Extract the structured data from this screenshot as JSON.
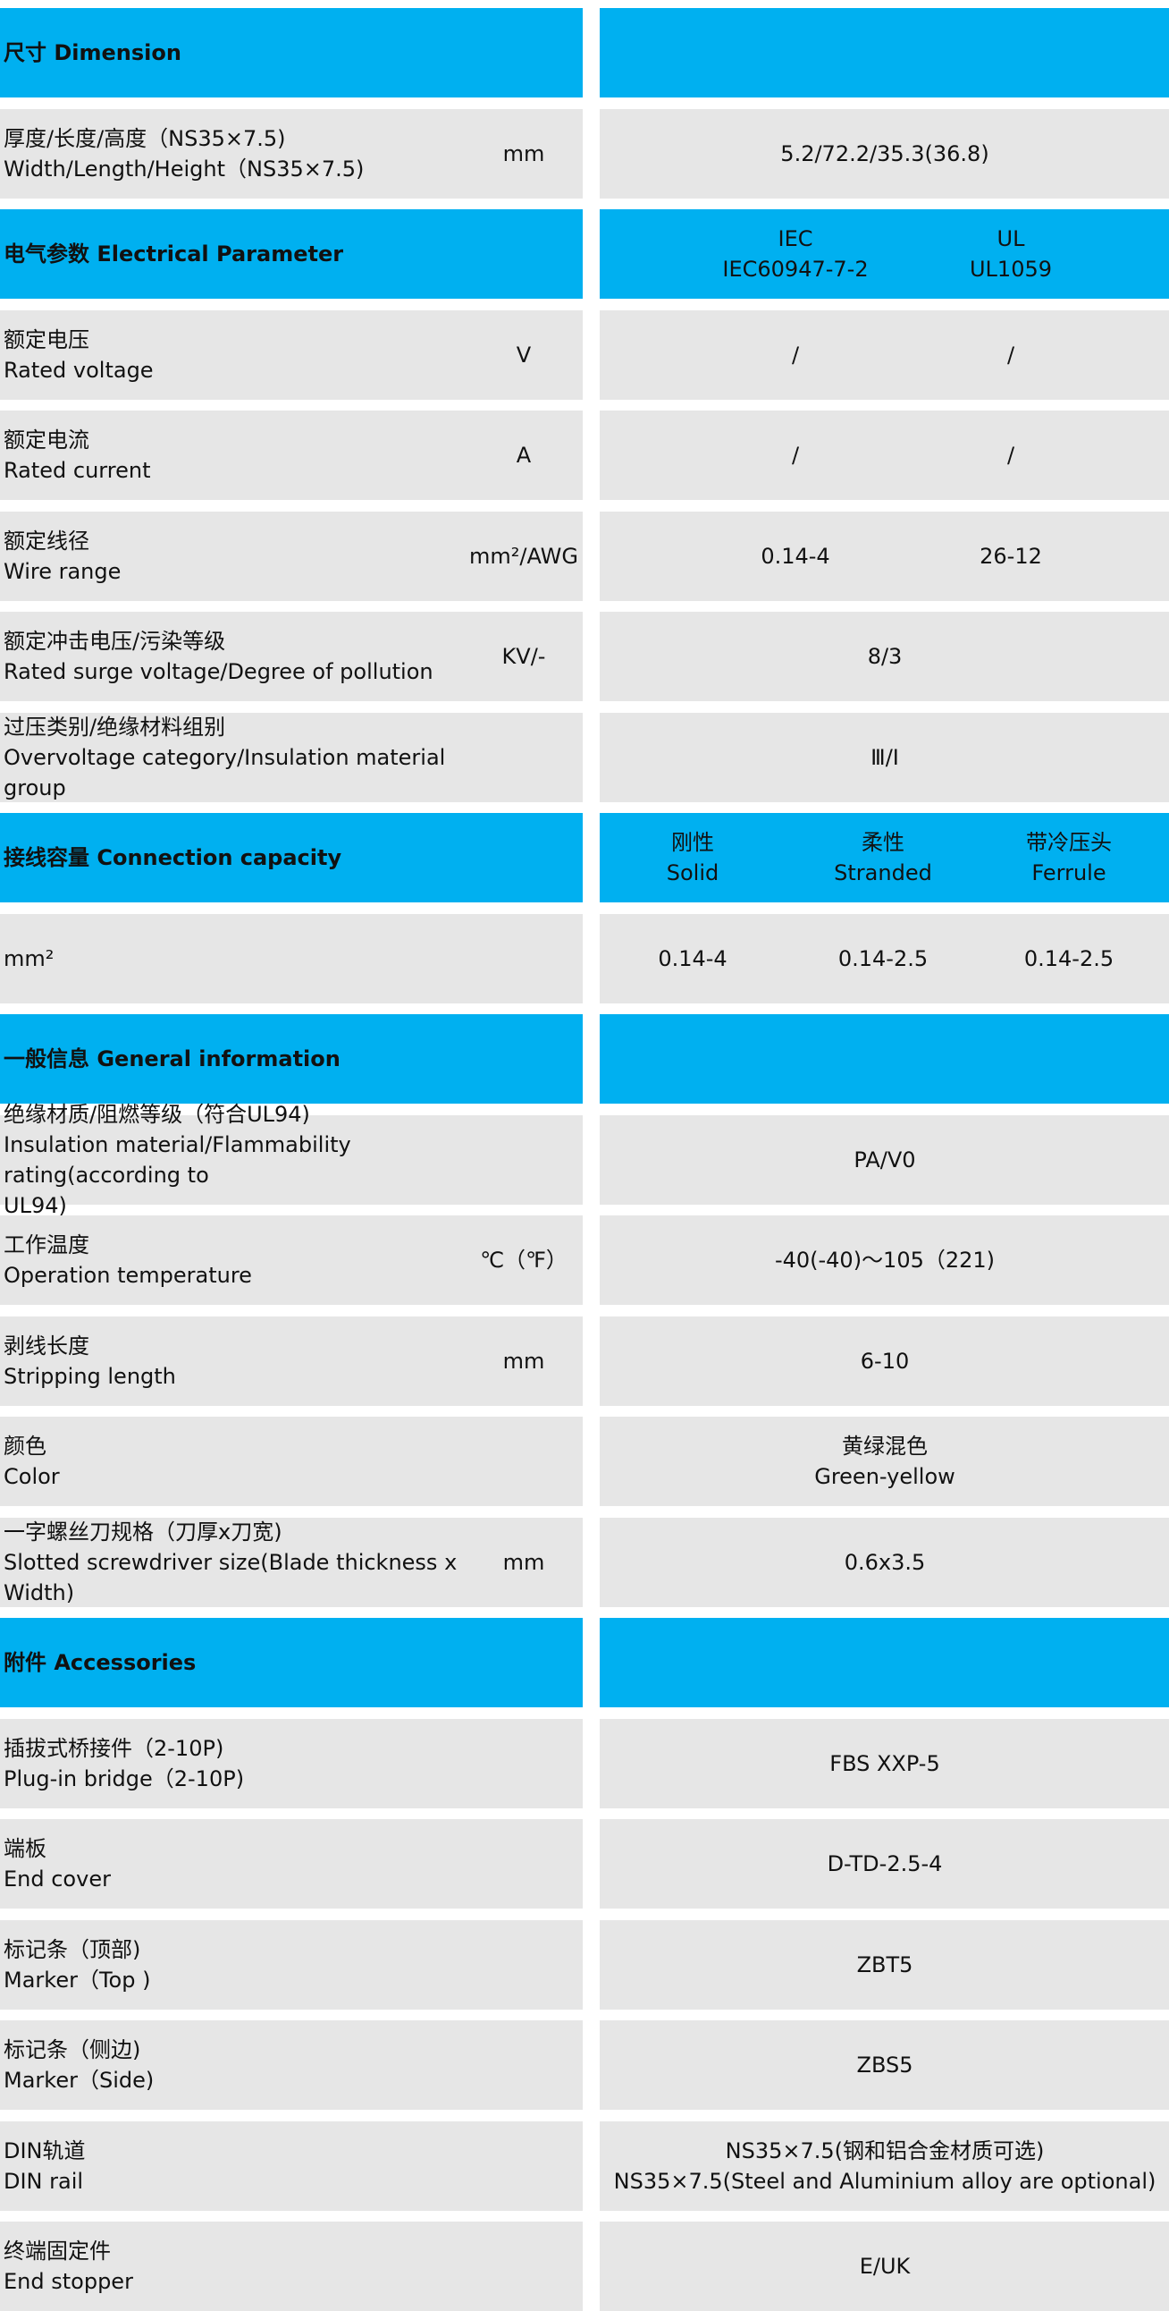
{
  "colors": {
    "header": "#00b0f0",
    "row": "#e6e6e6"
  },
  "rows": [
    {
      "type": "header",
      "label": [
        "尺寸 Dimension"
      ],
      "cells": []
    },
    {
      "type": "row",
      "label": [
        "厚度/长度/高度（NS35×7.5)",
        "Width/Length/Height（NS35×7.5)"
      ],
      "unit": "mm",
      "cells": [
        [
          "5.2/72.2/35.3(36.8)"
        ]
      ]
    },
    {
      "type": "header",
      "label": [
        "电气参数 Electrical Parameter"
      ],
      "cells": [
        [
          "IEC",
          "IEC60947-7-2"
        ],
        [
          "UL",
          "UL1059"
        ]
      ]
    },
    {
      "type": "row",
      "label": [
        "额定电压",
        "Rated voltage"
      ],
      "unit": "V",
      "cells": [
        [
          "/"
        ],
        [
          "/"
        ]
      ]
    },
    {
      "type": "row",
      "label": [
        "额定电流",
        "Rated current"
      ],
      "unit": "A",
      "cells": [
        [
          "/"
        ],
        [
          "/"
        ]
      ]
    },
    {
      "type": "row",
      "label": [
        "额定线径",
        "Wire range"
      ],
      "unit": "mm²/AWG",
      "cells": [
        [
          "0.14-4"
        ],
        [
          "26-12"
        ]
      ]
    },
    {
      "type": "row",
      "label": [
        "额定冲击电压/污染等级",
        "Rated surge voltage/Degree of pollution"
      ],
      "unit": "KV/-",
      "cells": [
        [
          "8/3"
        ]
      ]
    },
    {
      "type": "row",
      "label": [
        "过压类别/绝缘材料组别",
        "Overvoltage category/Insulation material group"
      ],
      "unit": "",
      "cells": [
        [
          "Ⅲ/Ⅰ"
        ]
      ]
    },
    {
      "type": "header",
      "label": [
        "接线容量 Connection capacity"
      ],
      "cells": [
        [
          "刚性",
          "Solid"
        ],
        [
          "柔性",
          "Stranded"
        ],
        [
          "带冷压头",
          "Ferrule"
        ]
      ]
    },
    {
      "type": "row",
      "label": [
        "mm²"
      ],
      "unit": "",
      "cells": [
        [
          "0.14-4"
        ],
        [
          "0.14-2.5"
        ],
        [
          "0.14-2.5"
        ]
      ]
    },
    {
      "type": "header",
      "label": [
        "一般信息 General information"
      ],
      "cells": []
    },
    {
      "type": "row",
      "label": [
        "绝缘材质/阻燃等级（符合UL94)",
        "Insulation material/Flammability rating(according to",
        "UL94)"
      ],
      "unit": "",
      "cells": [
        [
          "PA/V0"
        ]
      ]
    },
    {
      "type": "row",
      "label": [
        "工作温度",
        "Operation temperature"
      ],
      "unit": "℃（℉）",
      "cells": [
        [
          "-40(-40)～105（221)"
        ]
      ]
    },
    {
      "type": "row",
      "label": [
        "剥线长度",
        "Stripping length"
      ],
      "unit": "mm",
      "cells": [
        [
          "6-10"
        ]
      ]
    },
    {
      "type": "row",
      "label": [
        "颜色",
        "Color"
      ],
      "unit": "",
      "cells": [
        [
          "黄绿混色",
          "Green-yellow"
        ]
      ]
    },
    {
      "type": "row",
      "label": [
        "一字螺丝刀规格（刀厚x刀宽)",
        "Slotted screwdriver size(Blade thickness x",
        "Width)"
      ],
      "unit": "mm",
      "cells": [
        [
          "0.6x3.5"
        ]
      ]
    },
    {
      "type": "header",
      "label": [
        "附件 Accessories"
      ],
      "cells": []
    },
    {
      "type": "row",
      "label": [
        "插拔式桥接件（2-10P)",
        "Plug-in bridge（2-10P)"
      ],
      "unit": "",
      "cells": [
        [
          "FBS XXP-5"
        ]
      ]
    },
    {
      "type": "row",
      "label": [
        "端板",
        "End cover"
      ],
      "unit": "",
      "cells": [
        [
          "D-TD-2.5-4"
        ]
      ]
    },
    {
      "type": "row",
      "label": [
        "标记条（顶部)",
        "Marker（Top )"
      ],
      "unit": "",
      "cells": [
        [
          "ZBT5"
        ]
      ]
    },
    {
      "type": "row",
      "label": [
        "标记条（侧边)",
        "Marker（Side)"
      ],
      "unit": "",
      "cells": [
        [
          "ZBS5"
        ]
      ]
    },
    {
      "type": "row",
      "label": [
        "DIN轨道",
        "DIN rail"
      ],
      "unit": "",
      "cells": [
        [
          "NS35×7.5(钢和铝合金材质可选)",
          "NS35×7.5(Steel and Aluminium alloy are optional)"
        ]
      ]
    },
    {
      "type": "row",
      "label": [
        "终端固定件",
        "End stopper"
      ],
      "unit": "",
      "cells": [
        [
          "E/UK"
        ]
      ]
    }
  ]
}
